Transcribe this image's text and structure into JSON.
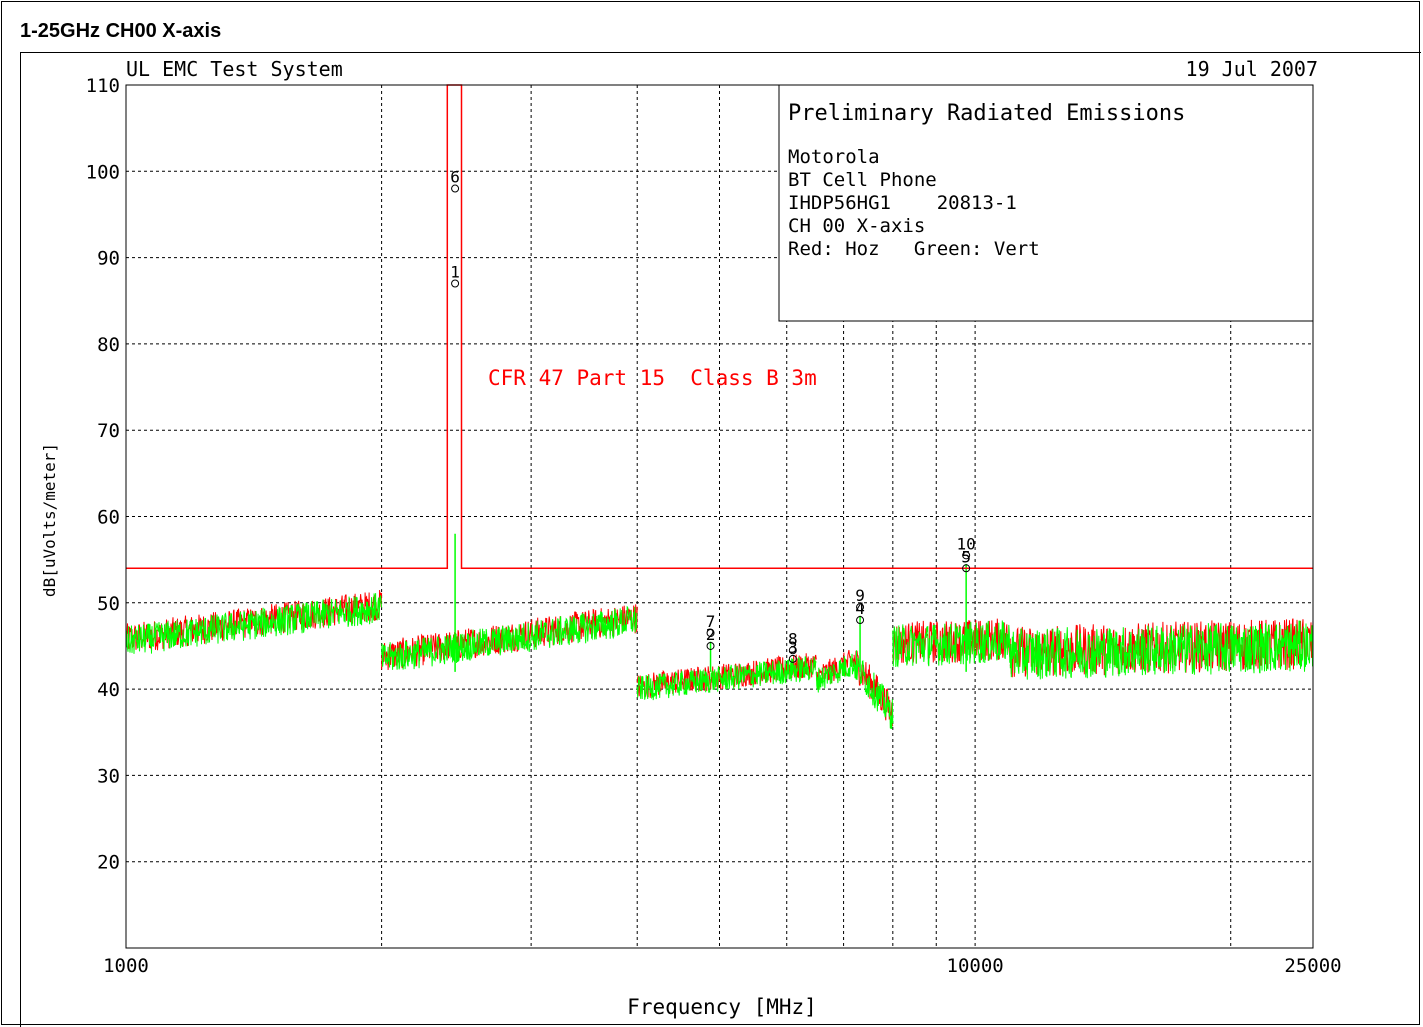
{
  "heading": "1-25GHz CH00 X-axis",
  "system_label": "UL EMC Test System",
  "date_label": "19 Jul 2007",
  "info_box": {
    "title": "Preliminary Radiated Emissions",
    "lines": [
      "Motorola",
      "BT Cell Phone",
      "IHDP56HG1    20813-1",
      "CH 00 X-axis",
      "Red: Hoz   Green: Vert"
    ]
  },
  "limit_label": "CFR 47 Part 15  Class B 3m",
  "colors": {
    "hoz": "#ff0000",
    "vert": "#00ff00",
    "limit": "#ff0000",
    "grid": "#000000"
  },
  "chart_data": {
    "type": "line",
    "xlabel": "Frequency [MHz]",
    "ylabel": "dB[uVolts/meter]",
    "x_scale": "log",
    "xlim": [
      1000,
      25000
    ],
    "ylim": [
      10,
      110
    ],
    "x_tick_labels": [
      "1000",
      "10000",
      "25000"
    ],
    "x_tick_values": [
      1000,
      10000,
      25000
    ],
    "x_gridlines": [
      2000,
      3000,
      4000,
      5000,
      6000,
      7000,
      8000,
      9000,
      20000
    ],
    "y_ticks": [
      110,
      100,
      90,
      80,
      70,
      60,
      50,
      40,
      30,
      20
    ],
    "grid": true,
    "limit_line": {
      "name": "CFR 47 Part 15  Class B 3m",
      "points": [
        [
          1000,
          54
        ],
        [
          2390,
          54
        ],
        [
          2390,
          110
        ],
        [
          2483.5,
          110
        ],
        [
          2483.5,
          54
        ],
        [
          25000,
          54
        ]
      ]
    },
    "segments": [
      {
        "x": [
          1000,
          2000
        ],
        "y": [
          45.5,
          49.5
        ],
        "noise": 1.8
      },
      {
        "x": [
          2000,
          4000
        ],
        "y": [
          43.5,
          48
        ],
        "noise": 1.8
      },
      {
        "x": [
          4000,
          6500
        ],
        "y": [
          40,
          42.5
        ],
        "noise": 1.5
      },
      {
        "x": [
          6500,
          7200
        ],
        "y": [
          41,
          43
        ],
        "noise": 1.5
      },
      {
        "x": [
          7200,
          8000
        ],
        "y": [
          43,
          37
        ],
        "noise": 2
      },
      {
        "x": [
          8000,
          11000
        ],
        "y": [
          45,
          45.5
        ],
        "noise": 2.5
      },
      {
        "x": [
          11000,
          25000
        ],
        "y": [
          44,
          45
        ],
        "noise": 3
      }
    ],
    "markers": [
      {
        "label": "1",
        "x": 2441,
        "y": 87
      },
      {
        "label": "6",
        "x": 2441,
        "y": 98
      },
      {
        "label": "2",
        "x": 4880,
        "y": 45
      },
      {
        "label": "7",
        "x": 4880,
        "y": 46.5
      },
      {
        "label": "3",
        "x": 6100,
        "y": 43.5
      },
      {
        "label": "8",
        "x": 6100,
        "y": 44.5
      },
      {
        "label": "4",
        "x": 7320,
        "y": 48
      },
      {
        "label": "9",
        "x": 7320,
        "y": 49.5
      },
      {
        "label": "5",
        "x": 9760,
        "y": 54
      },
      {
        "label": "10",
        "x": 9760,
        "y": 55.5
      }
    ]
  }
}
